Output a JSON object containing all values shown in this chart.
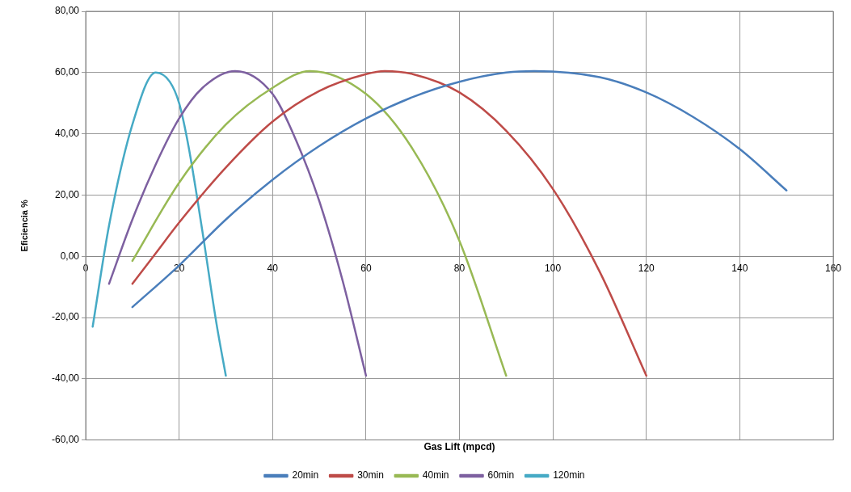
{
  "chart_data": {
    "type": "line",
    "xlabel": "Gas Lift (mpcd)",
    "ylabel": "Eficiencia %",
    "xlim": [
      0,
      160
    ],
    "xticks": [
      0,
      20,
      40,
      60,
      80,
      100,
      120,
      140,
      160
    ],
    "ylim": [
      -60,
      80
    ],
    "yticks": [
      {
        "value": -60,
        "label": "-60,00"
      },
      {
        "value": -40,
        "label": "-40,00"
      },
      {
        "value": -20,
        "label": "-20,00"
      },
      {
        "value": 0,
        "label": "0,00"
      },
      {
        "value": 20,
        "label": "20,00"
      },
      {
        "value": 40,
        "label": "40,00"
      },
      {
        "value": 60,
        "label": "60,00"
      },
      {
        "value": 80,
        "label": "80,00"
      }
    ],
    "grid": true,
    "legend": "bottom",
    "marker": "none",
    "line_style": "solid",
    "series": [
      {
        "name": "20min",
        "color": "#4a7ebb",
        "x": [
          10,
          20,
          30,
          40,
          50,
          60,
          70,
          80,
          90,
          96,
          110,
          120,
          130,
          140,
          150
        ],
        "values": [
          -16.6,
          -3,
          12,
          25,
          36,
          45,
          52,
          57,
          60,
          60.5,
          58.5,
          53.5,
          45.5,
          35,
          21.5
        ]
      },
      {
        "name": "30min",
        "color": "#be4b48",
        "x": [
          10,
          15,
          20,
          30,
          40,
          50,
          60,
          64,
          70,
          80,
          90,
          100,
          110,
          120
        ],
        "values": [
          -9,
          1,
          11,
          29,
          44,
          54,
          59.5,
          60.5,
          59.5,
          53.5,
          41,
          22,
          -5,
          -39
        ]
      },
      {
        "name": "40min",
        "color": "#98b954",
        "x": [
          10,
          20,
          30,
          40,
          48,
          60,
          70,
          80,
          90
        ],
        "values": [
          -1.5,
          24,
          43,
          55,
          60.5,
          53,
          35,
          5,
          -39
        ]
      },
      {
        "name": "60min",
        "color": "#7d60a0",
        "x": [
          5,
          10,
          15,
          20,
          25,
          32,
          40,
          45,
          50,
          55,
          60
        ],
        "values": [
          -9,
          12,
          30,
          45,
          55,
          60.5,
          53,
          38,
          18,
          -8,
          -39
        ]
      },
      {
        "name": "120min",
        "color": "#46aac5",
        "x": [
          1.5,
          5,
          10,
          15,
          18,
          20,
          22,
          25,
          28,
          30
        ],
        "values": [
          -23,
          10,
          43,
          60,
          57,
          50,
          36,
          8,
          -22,
          -39
        ]
      }
    ]
  }
}
